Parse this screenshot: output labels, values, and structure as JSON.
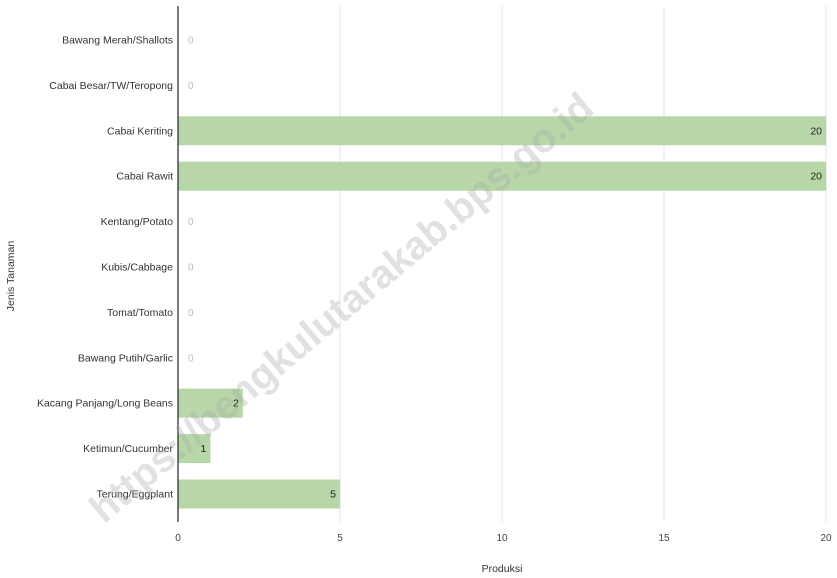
{
  "watermark": "https://bengkulutarakab.bps.go.id",
  "colors": {
    "bar": "#b7d7a8",
    "grid": "#e3e3e3",
    "axis": "#222222"
  },
  "chart_data": {
    "type": "bar",
    "orientation": "horizontal",
    "title": "",
    "xlabel": "Produksi",
    "ylabel": "Jenis Tanaman",
    "xlim": [
      0,
      20
    ],
    "xticks": [
      0,
      5,
      10,
      15,
      20
    ],
    "grid": true,
    "categories": [
      "Bawang Merah/Shallots",
      "Cabai Besar/TW/Teropong",
      "Cabai Keriting",
      "Cabai Rawit",
      "Kentang/Potato",
      "Kubis/Cabbage",
      "Tomat/Tomato",
      "Bawang Putih/Garlic",
      "Kacang Panjang/Long Beans",
      "Ketimun/Cucumber",
      "Terung/Eggplant"
    ],
    "values": [
      0,
      0,
      20,
      20,
      0,
      0,
      0,
      0,
      2,
      1,
      5
    ]
  }
}
